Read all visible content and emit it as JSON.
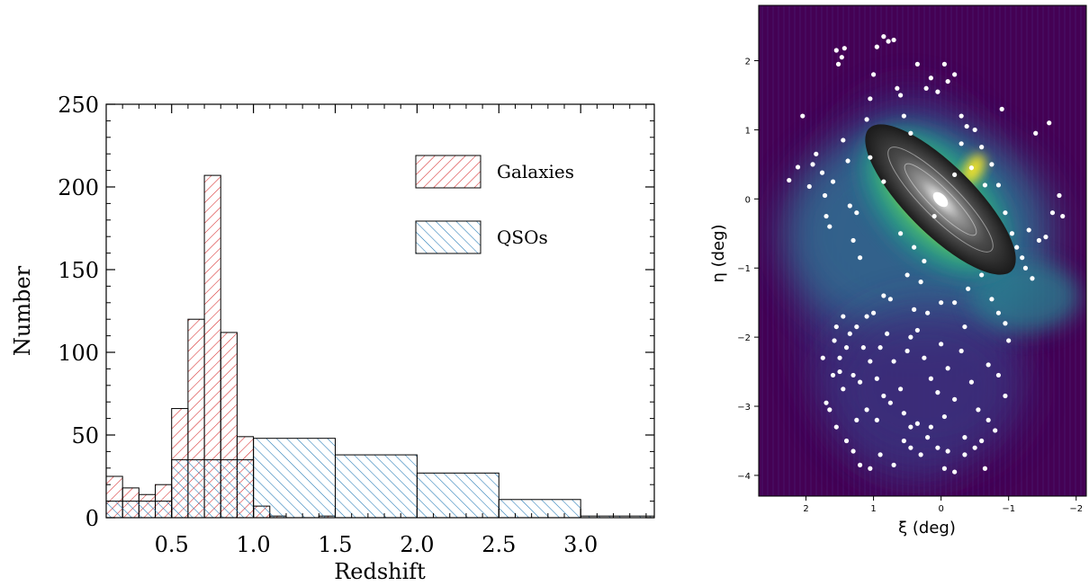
{
  "chart_data": [
    {
      "type": "bar",
      "subtype": "histogram",
      "xlabel": "Redshift",
      "ylabel": "Number",
      "xlim": [
        0.1,
        3.45
      ],
      "ylim": [
        0,
        250
      ],
      "xticks": [
        "0.5",
        "1.0",
        "1.5",
        "2.0",
        "2.5",
        "3.0"
      ],
      "yticks": [
        "0",
        "50",
        "100",
        "150",
        "200",
        "250"
      ],
      "legend": {
        "placement": "top-right"
      },
      "series": [
        {
          "name": "Galaxies",
          "color": "#d62728",
          "hatch": "diagonal-up",
          "bins": [
            [
              0.1,
              0.2,
              25
            ],
            [
              0.2,
              0.3,
              18
            ],
            [
              0.3,
              0.4,
              14
            ],
            [
              0.4,
              0.5,
              20
            ],
            [
              0.5,
              0.6,
              66
            ],
            [
              0.6,
              0.7,
              120
            ],
            [
              0.7,
              0.8,
              207
            ],
            [
              0.8,
              0.9,
              112
            ],
            [
              0.9,
              1.0,
              49
            ],
            [
              1.0,
              1.1,
              7
            ],
            [
              1.1,
              1.2,
              1
            ],
            [
              1.2,
              1.3,
              0
            ],
            [
              1.3,
              1.4,
              0
            ],
            [
              1.4,
              1.5,
              1
            ]
          ]
        },
        {
          "name": "QSOs",
          "color": "#1f77b4",
          "hatch": "diagonal-down",
          "bins": [
            [
              0.1,
              0.5,
              10
            ],
            [
              0.5,
              1.0,
              35
            ],
            [
              1.0,
              1.5,
              48
            ],
            [
              1.5,
              2.0,
              38
            ],
            [
              2.0,
              2.5,
              27
            ],
            [
              2.5,
              3.0,
              11
            ],
            [
              3.0,
              3.45,
              1
            ]
          ]
        }
      ]
    },
    {
      "type": "scatter",
      "xlabel": "ξ (deg)",
      "ylabel": "η (deg)",
      "xlim": [
        2.7,
        -2.15
      ],
      "ylim": [
        -4.3,
        2.8
      ],
      "xticks": [
        "2",
        "1",
        "0",
        "−1",
        "−2"
      ],
      "yticks": [
        "2",
        "1",
        "0",
        "−1",
        "−2",
        "−3",
        "−4"
      ],
      "background": "stellar density map (viridis) with galaxy image inset",
      "point_color": "#ffffff",
      "points": [
        [
          2.25,
          0.27
        ],
        [
          2.12,
          0.46
        ],
        [
          2.05,
          1.2
        ],
        [
          1.95,
          0.18
        ],
        [
          1.9,
          0.5
        ],
        [
          1.85,
          0.65
        ],
        [
          1.76,
          0.38
        ],
        [
          1.72,
          0.05
        ],
        [
          1.7,
          -0.25
        ],
        [
          1.65,
          -0.4
        ],
        [
          1.55,
          2.15
        ],
        [
          1.52,
          1.95
        ],
        [
          1.47,
          2.05
        ],
        [
          1.43,
          2.18
        ],
        [
          1.6,
          0.25
        ],
        [
          1.45,
          0.85
        ],
        [
          1.38,
          0.55
        ],
        [
          1.35,
          -0.1
        ],
        [
          1.3,
          -0.6
        ],
        [
          1.25,
          -0.2
        ],
        [
          1.2,
          -0.85
        ],
        [
          1.1,
          1.15
        ],
        [
          1.05,
          1.45
        ],
        [
          1.0,
          1.8
        ],
        [
          0.95,
          2.2
        ],
        [
          0.85,
          2.35
        ],
        [
          0.78,
          2.28
        ],
        [
          0.7,
          2.3
        ],
        [
          0.65,
          1.6
        ],
        [
          0.6,
          1.5
        ],
        [
          0.55,
          1.2
        ],
        [
          0.45,
          0.95
        ],
        [
          0.35,
          1.95
        ],
        [
          0.22,
          1.6
        ],
        [
          0.15,
          1.75
        ],
        [
          0.05,
          1.55
        ],
        [
          -0.05,
          1.95
        ],
        [
          -0.1,
          1.7
        ],
        [
          -0.2,
          1.8
        ],
        [
          -0.3,
          1.2
        ],
        [
          -0.38,
          1.05
        ],
        [
          -0.5,
          1.0
        ],
        [
          -0.6,
          0.75
        ],
        [
          -0.75,
          0.5
        ],
        [
          -0.85,
          0.2
        ],
        [
          -0.95,
          -0.2
        ],
        [
          -1.05,
          -0.5
        ],
        [
          -1.12,
          -0.7
        ],
        [
          -1.2,
          -0.85
        ],
        [
          -1.3,
          -0.45
        ],
        [
          -1.45,
          -0.6
        ],
        [
          -1.55,
          -0.55
        ],
        [
          -1.65,
          -0.2
        ],
        [
          -1.75,
          0.05
        ],
        [
          -1.8,
          -0.25
        ],
        [
          -1.4,
          0.95
        ],
        [
          -1.6,
          1.1
        ],
        [
          -0.9,
          1.3
        ],
        [
          -0.2,
          0.35
        ],
        [
          0.1,
          -0.25
        ],
        [
          0.3,
          -1.2
        ],
        [
          0.5,
          -1.1
        ],
        [
          0.75,
          -1.45
        ],
        [
          0.85,
          -1.4
        ],
        [
          1.0,
          -1.65
        ],
        [
          1.1,
          -1.7
        ],
        [
          1.25,
          -1.85
        ],
        [
          1.35,
          -1.95
        ],
        [
          1.4,
          -2.15
        ],
        [
          1.55,
          -1.85
        ],
        [
          1.58,
          -2.05
        ],
        [
          1.5,
          -2.5
        ],
        [
          1.3,
          -2.55
        ],
        [
          1.2,
          -2.65
        ],
        [
          1.05,
          -2.35
        ],
        [
          0.95,
          -2.6
        ],
        [
          0.85,
          -2.85
        ],
        [
          0.75,
          -2.95
        ],
        [
          0.6,
          -2.75
        ],
        [
          0.5,
          -2.2
        ],
        [
          0.45,
          -2.0
        ],
        [
          0.35,
          -1.9
        ],
        [
          0.25,
          -2.3
        ],
        [
          0.15,
          -2.6
        ],
        [
          0.05,
          -2.8
        ],
        [
          0.0,
          -2.1
        ],
        [
          -0.1,
          -2.45
        ],
        [
          -0.2,
          -2.9
        ],
        [
          -0.3,
          -2.2
        ],
        [
          -0.35,
          -1.85
        ],
        [
          -0.45,
          -2.65
        ],
        [
          -0.55,
          -3.05
        ],
        [
          -0.6,
          -3.5
        ],
        [
          -0.7,
          -3.2
        ],
        [
          -0.8,
          -3.35
        ],
        [
          -0.95,
          -2.85
        ],
        [
          -1.0,
          -2.05
        ],
        [
          -0.75,
          -1.45
        ],
        [
          -0.6,
          -1.1
        ],
        [
          -0.4,
          -1.3
        ],
        [
          -0.2,
          -1.5
        ],
        [
          0.0,
          -1.5
        ],
        [
          0.2,
          -1.65
        ],
        [
          1.7,
          -2.95
        ],
        [
          1.65,
          -3.05
        ],
        [
          1.55,
          -3.3
        ],
        [
          1.4,
          -3.5
        ],
        [
          1.3,
          -3.65
        ],
        [
          1.2,
          -3.85
        ],
        [
          1.05,
          -3.9
        ],
        [
          0.9,
          -3.7
        ],
        [
          0.7,
          -3.85
        ],
        [
          0.55,
          -3.5
        ],
        [
          0.45,
          -3.6
        ],
        [
          0.3,
          -3.7
        ],
        [
          0.2,
          -3.45
        ],
        [
          0.05,
          -3.6
        ],
        [
          -0.1,
          -3.65
        ],
        [
          -0.2,
          -3.95
        ],
        [
          -0.35,
          -3.7
        ],
        [
          -0.5,
          -3.6
        ],
        [
          -0.65,
          -3.9
        ],
        [
          0.55,
          -3.1
        ],
        [
          0.35,
          -3.25
        ],
        [
          0.15,
          -3.3
        ],
        [
          -0.05,
          -3.15
        ],
        [
          0.7,
          -2.35
        ],
        [
          0.9,
          -2.15
        ],
        [
          1.15,
          -2.15
        ],
        [
          0.6,
          -0.5
        ],
        [
          0.4,
          -0.7
        ],
        [
          0.25,
          -0.9
        ],
        [
          -0.45,
          0.45
        ],
        [
          -0.65,
          0.2
        ],
        [
          -0.3,
          0.8
        ],
        [
          0.85,
          0.25
        ],
        [
          1.05,
          0.6
        ],
        [
          1.5,
          -2.3
        ],
        [
          1.45,
          -1.7
        ],
        [
          -1.25,
          -1.0
        ],
        [
          -1.35,
          -1.15
        ],
        [
          -0.35,
          -3.45
        ],
        [
          -0.05,
          -3.9
        ],
        [
          0.45,
          -3.3
        ],
        [
          0.95,
          -3.2
        ],
        [
          1.1,
          -3.05
        ],
        [
          1.25,
          -3.2
        ],
        [
          1.45,
          -2.75
        ],
        [
          -0.85,
          -2.55
        ],
        [
          -0.7,
          -2.4
        ],
        [
          -0.95,
          -1.8
        ],
        [
          -0.85,
          -1.65
        ],
        [
          0.4,
          -1.6
        ],
        [
          0.8,
          -1.95
        ],
        [
          1.6,
          -2.55
        ],
        [
          1.75,
          -2.3
        ]
      ]
    }
  ]
}
